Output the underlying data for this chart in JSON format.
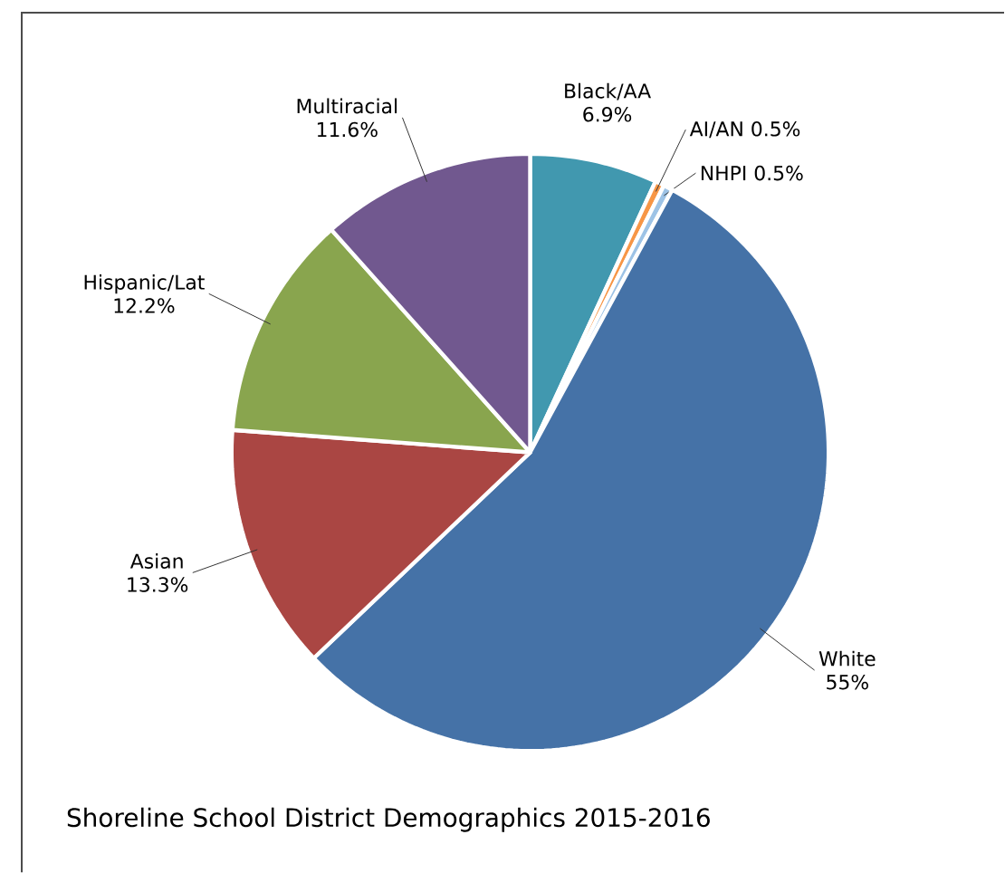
{
  "chart_data": {
    "type": "pie",
    "title": "Shoreline School District Demographics 2015-2016",
    "categories": [
      "Black/AA",
      "AI/AN",
      "NHPI",
      "White",
      "Asian",
      "Hispanic/Lat",
      "Multiracial"
    ],
    "values": [
      6.9,
      0.5,
      0.5,
      55,
      13.3,
      12.2,
      11.6
    ],
    "value_labels": [
      "6.9%",
      "0.5%",
      "0.5%",
      "55%",
      "13.3%",
      "12.2%",
      "11.6%"
    ],
    "colors": [
      "#4198af",
      "#f79646",
      "#9dc3e6",
      "#4572a7",
      "#aa4643",
      "#89a54e",
      "#71588f"
    ]
  }
}
